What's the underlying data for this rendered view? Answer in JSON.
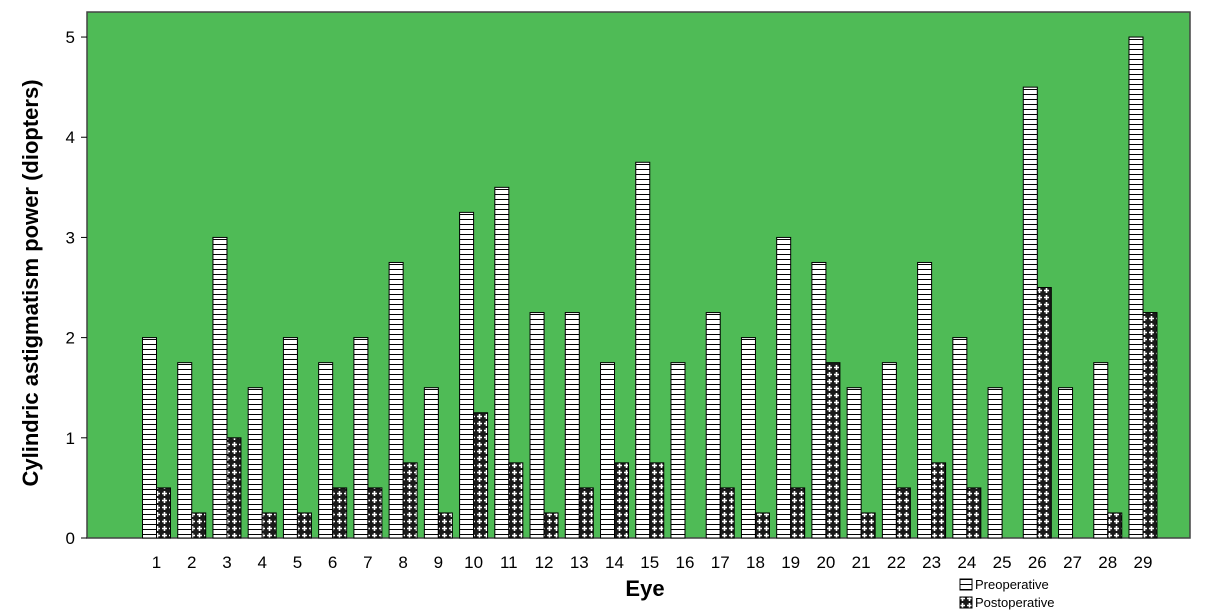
{
  "chart_data": {
    "type": "bar",
    "categories": [
      "1",
      "2",
      "3",
      "4",
      "5",
      "6",
      "7",
      "8",
      "9",
      "10",
      "11",
      "12",
      "13",
      "14",
      "15",
      "16",
      "17",
      "18",
      "19",
      "20",
      "21",
      "22",
      "23",
      "24",
      "25",
      "26",
      "27",
      "28",
      "29"
    ],
    "series": [
      {
        "name": "Preoperative",
        "values": [
          2,
          1.75,
          3,
          1.5,
          2,
          1.75,
          2,
          2.75,
          1.5,
          3.25,
          3.5,
          2.25,
          2.25,
          1.75,
          3.75,
          1.75,
          2.25,
          2,
          3,
          2.75,
          1.5,
          1.75,
          2.75,
          2,
          1.5,
          4.5,
          1.5,
          1.75,
          5
        ]
      },
      {
        "name": "Postoperative",
        "values": [
          0.5,
          0.25,
          1,
          0.25,
          0.25,
          0.5,
          0.5,
          0.75,
          0.25,
          1.25,
          0.75,
          0.25,
          0.5,
          0.75,
          0.75,
          0,
          0.5,
          0.25,
          0.5,
          1.75,
          0.25,
          0.5,
          0.75,
          0.5,
          0,
          2.5,
          0,
          0.25,
          2.25
        ]
      }
    ],
    "xlabel": "Eye",
    "ylabel": "Cylindric astigmatism power (diopters)",
    "ylim": [
      0,
      5.25
    ],
    "yticks": [
      "0",
      "1",
      "2",
      "3",
      "4",
      "5"
    ],
    "grid": false,
    "legend_position": "bottom-right",
    "colors": {
      "plot_background": "#4fbb56",
      "plot_border": "#444444",
      "preoperative_fill": "#ffffff",
      "postoperative_fill": "#1a1a1a",
      "bar_stroke": "#000000"
    }
  }
}
